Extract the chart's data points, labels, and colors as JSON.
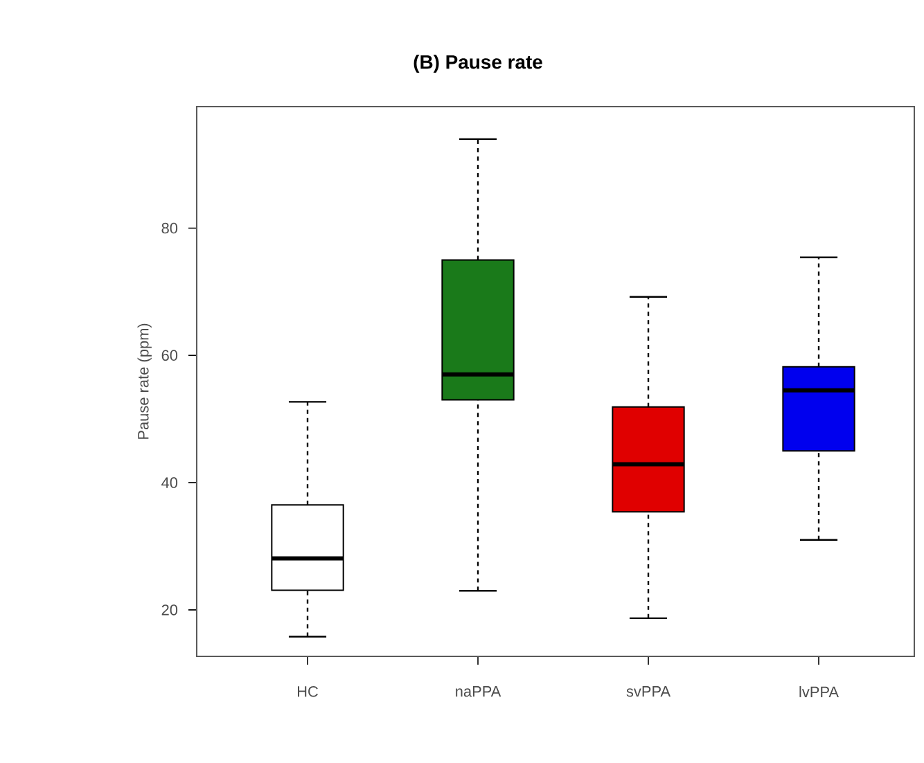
{
  "chart_data": {
    "type": "box",
    "title": "(B) Pause rate",
    "ylabel": "Pause rate (ppm)",
    "categories": [
      "HC",
      "naPPA",
      "svPPA",
      "lvPPA"
    ],
    "colors": [
      "#ffffff",
      "#1a7a1a",
      "#e00000",
      "#0000ee"
    ],
    "boxes": [
      {
        "low": 15.8,
        "q1": 23.1,
        "median": 28.1,
        "q3": 36.5,
        "high": 52.7
      },
      {
        "low": 23,
        "q1": 53,
        "median": 57,
        "q3": 75,
        "high": 94
      },
      {
        "low": 18.7,
        "q1": 35.4,
        "median": 42.9,
        "q3": 51.9,
        "high": 69.2
      },
      {
        "low": 31,
        "q1": 45,
        "median": 54.5,
        "q3": 58.2,
        "high": 75.4
      }
    ],
    "ylim": [
      12.7,
      99.1
    ],
    "yticks": [
      20,
      40,
      60,
      80
    ],
    "line_style": "dashed"
  }
}
